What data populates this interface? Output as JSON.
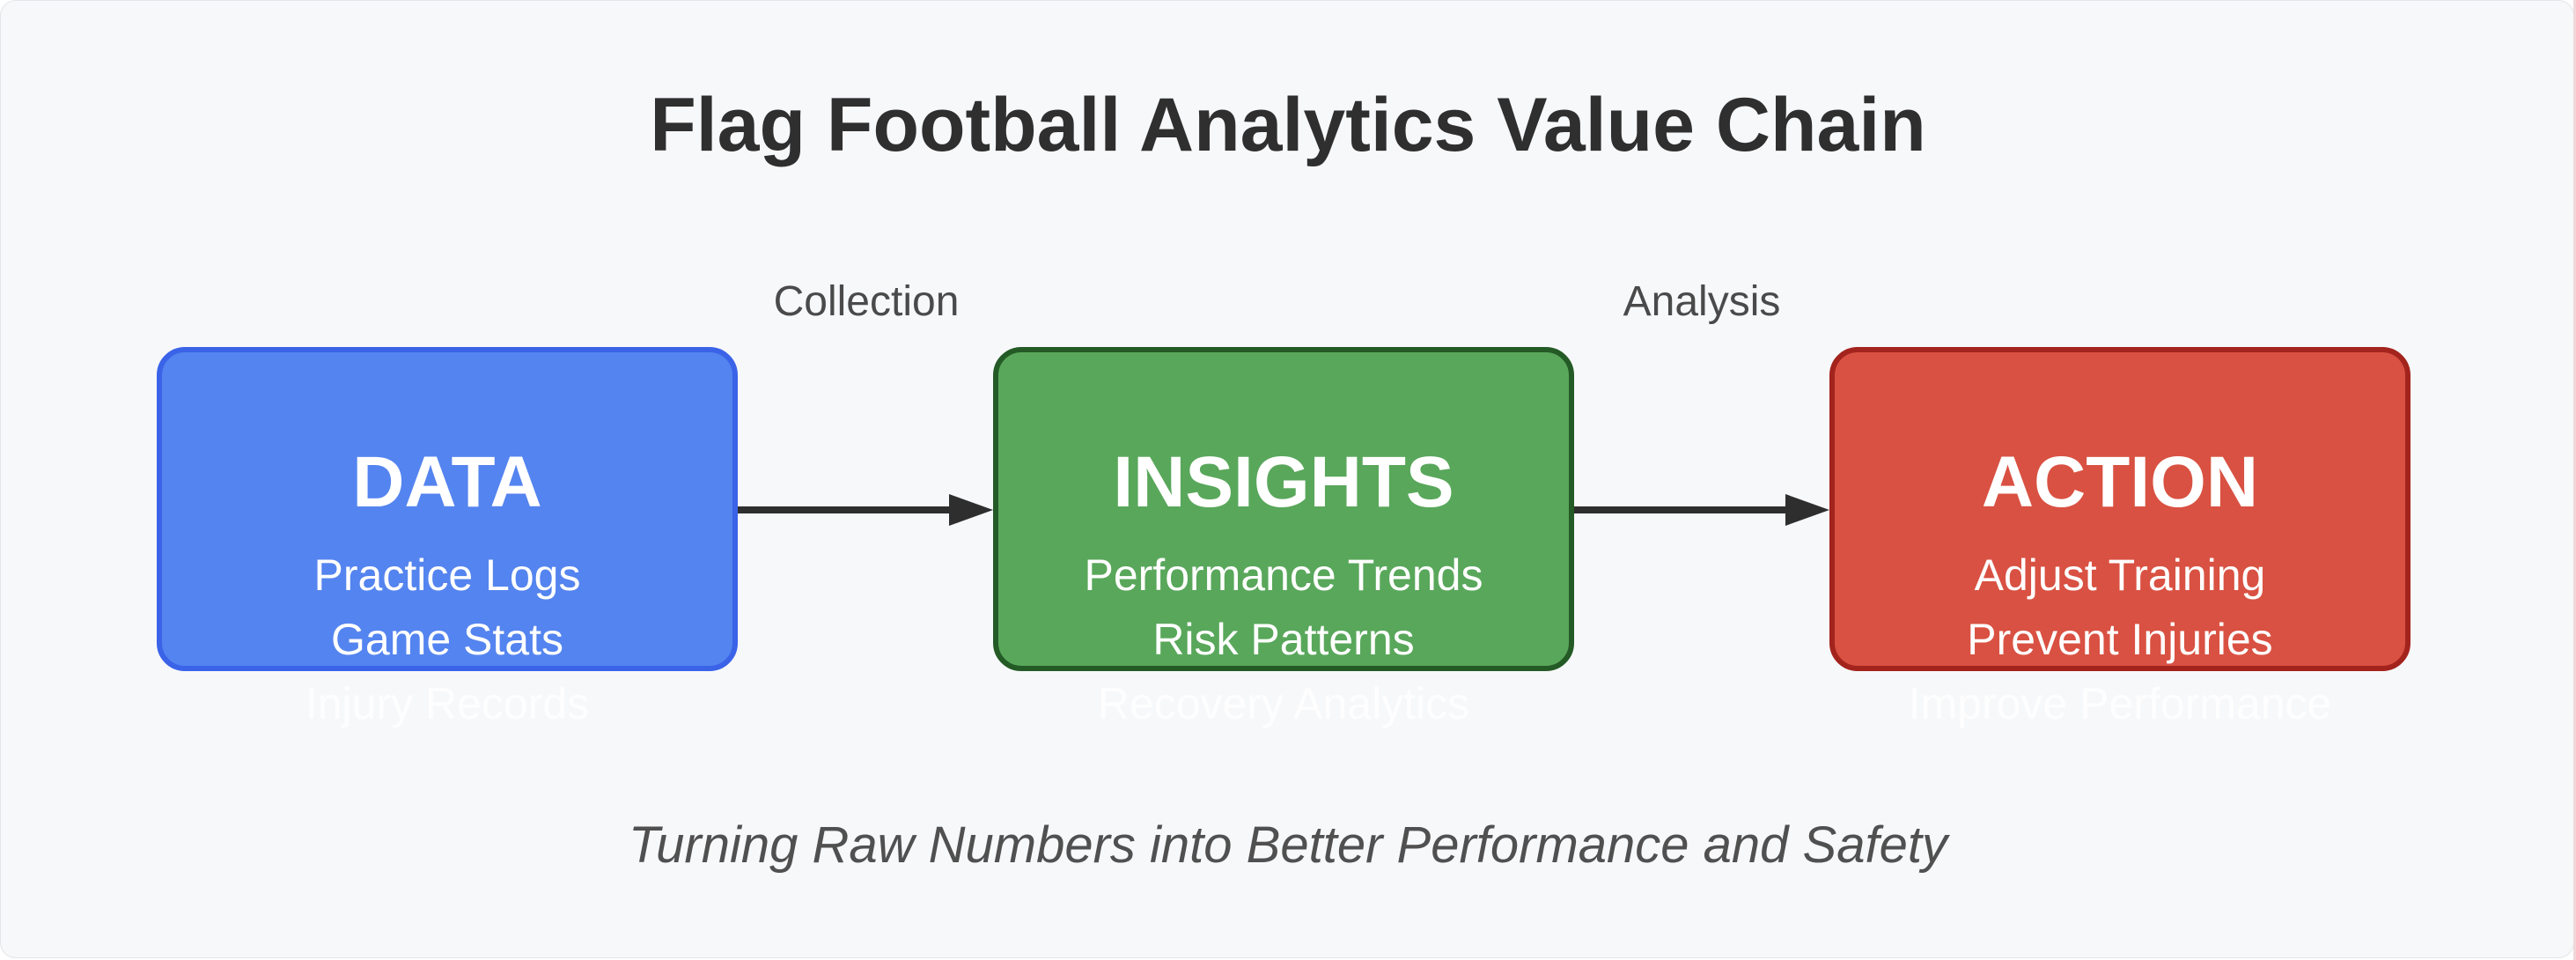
{
  "title": "Flag Football Analytics Value Chain",
  "subtitle": "Turning Raw Numbers into Better Performance and Safety",
  "edges": [
    {
      "label": "Collection",
      "from": "DATA",
      "to": "INSIGHTS"
    },
    {
      "label": "Analysis",
      "from": "INSIGHTS",
      "to": "ACTION"
    }
  ],
  "nodes": [
    {
      "title": "DATA",
      "color": "#5484ef",
      "border": "#3a63e8",
      "lines": [
        "Practice Logs",
        "Game Stats",
        "Injury Records"
      ]
    },
    {
      "title": "INSIGHTS",
      "color": "#59a75b",
      "border": "#245a25",
      "lines": [
        "Performance Trends",
        "Risk Patterns",
        "Recovery Analytics"
      ]
    },
    {
      "title": "ACTION",
      "color": "#d95142",
      "border": "#a3231d",
      "lines": [
        "Adjust Training",
        "Prevent Injuries",
        "Improve Performance"
      ]
    }
  ]
}
